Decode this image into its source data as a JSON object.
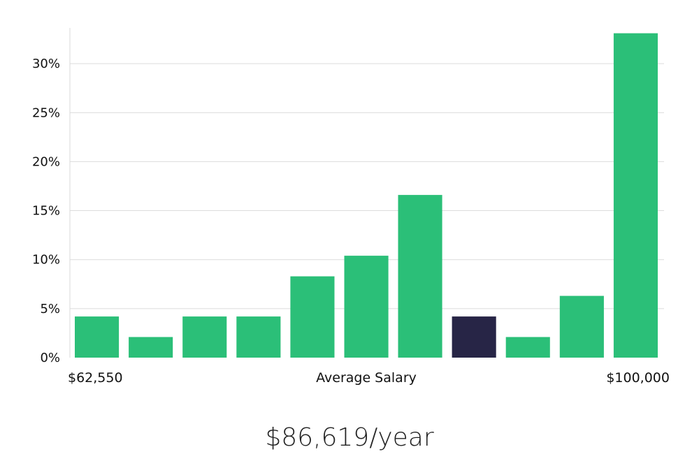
{
  "chart_data": {
    "type": "bar",
    "categories": [
      "1",
      "2",
      "3",
      "4",
      "5",
      "6",
      "7",
      "8",
      "9",
      "10",
      "11"
    ],
    "values": [
      4.2,
      2.1,
      4.2,
      4.2,
      8.3,
      10.4,
      16.6,
      4.2,
      2.1,
      6.3,
      33.1
    ],
    "highlight_index": 7,
    "ylim": [
      0,
      33.5
    ],
    "yticks": [
      0,
      5,
      10,
      15,
      20,
      25,
      30
    ],
    "ytick_labels": [
      "0%",
      "5%",
      "10%",
      "15%",
      "20%",
      "25%",
      "30%"
    ],
    "x_min_label": "$62,550",
    "xlabel": "Average Salary",
    "x_max_label": "$100,000",
    "grid": true,
    "colors": {
      "bar": "#2bbf78",
      "highlight": "#272546"
    }
  },
  "headline": "$86,619/year"
}
